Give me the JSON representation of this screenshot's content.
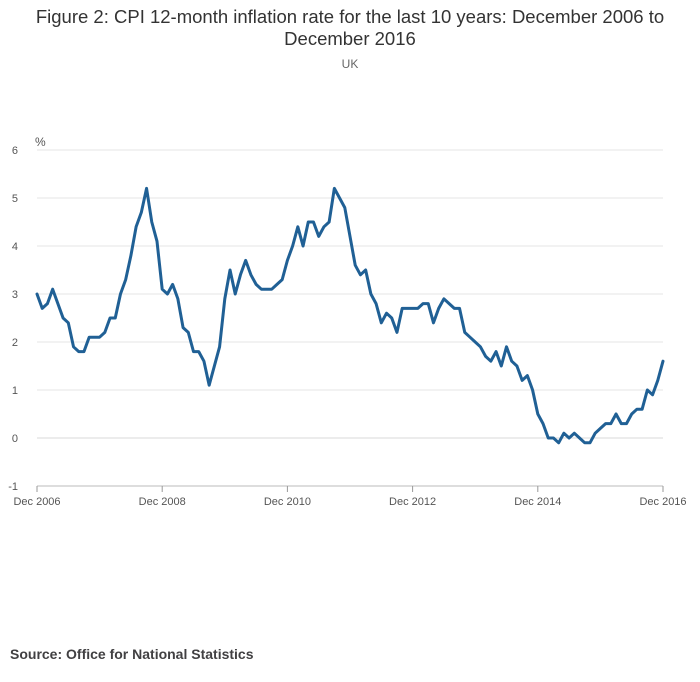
{
  "chart_data": {
    "type": "line",
    "title": "Figure 2: CPI 12-month inflation rate for the last 10 years: December 2006 to December 2016",
    "subtitle": "UK",
    "ylabel": "%",
    "xlabel": "",
    "ylim": [
      -1,
      6
    ],
    "yticks": [
      -1,
      0,
      1,
      2,
      3,
      4,
      5,
      6
    ],
    "xlim": [
      "2006-12",
      "2016-12"
    ],
    "xticks": [
      {
        "value": "2006-12",
        "label": "Dec 2006"
      },
      {
        "value": "2008-12",
        "label": "Dec 2008"
      },
      {
        "value": "2010-12",
        "label": "Dec 2010"
      },
      {
        "value": "2012-12",
        "label": "Dec 2012"
      },
      {
        "value": "2014-12",
        "label": "Dec 2014"
      },
      {
        "value": "2016-12",
        "label": "Dec 2016"
      }
    ],
    "grid": true,
    "line_color": "#206095",
    "series": [
      {
        "x": [
          "2006-12",
          "2007-01",
          "2007-02",
          "2007-03",
          "2007-04",
          "2007-05",
          "2007-06",
          "2007-07",
          "2007-08",
          "2007-09",
          "2007-10",
          "2007-11",
          "2007-12",
          "2008-01",
          "2008-02",
          "2008-03",
          "2008-04",
          "2008-05",
          "2008-06",
          "2008-07",
          "2008-08",
          "2008-09",
          "2008-10",
          "2008-11",
          "2008-12",
          "2009-01",
          "2009-02",
          "2009-03",
          "2009-04",
          "2009-05",
          "2009-06",
          "2009-07",
          "2009-08",
          "2009-09",
          "2009-10",
          "2009-11",
          "2009-12",
          "2010-01",
          "2010-02",
          "2010-03",
          "2010-04",
          "2010-05",
          "2010-06",
          "2010-07",
          "2010-08",
          "2010-09",
          "2010-10",
          "2010-11",
          "2010-12",
          "2011-01",
          "2011-02",
          "2011-03",
          "2011-04",
          "2011-05",
          "2011-06",
          "2011-07",
          "2011-08",
          "2011-09",
          "2011-10",
          "2011-11",
          "2011-12",
          "2012-01",
          "2012-02",
          "2012-03",
          "2012-04",
          "2012-05",
          "2012-06",
          "2012-07",
          "2012-08",
          "2012-09",
          "2012-10",
          "2012-11",
          "2012-12",
          "2013-01",
          "2013-02",
          "2013-03",
          "2013-04",
          "2013-05",
          "2013-06",
          "2013-07",
          "2013-08",
          "2013-09",
          "2013-10",
          "2013-11",
          "2013-12",
          "2014-01",
          "2014-02",
          "2014-03",
          "2014-04",
          "2014-05",
          "2014-06",
          "2014-07",
          "2014-08",
          "2014-09",
          "2014-10",
          "2014-11",
          "2014-12",
          "2015-01",
          "2015-02",
          "2015-03",
          "2015-04",
          "2015-05",
          "2015-06",
          "2015-07",
          "2015-08",
          "2015-09",
          "2015-10",
          "2015-11",
          "2015-12",
          "2016-01",
          "2016-02",
          "2016-03",
          "2016-04",
          "2016-05",
          "2016-06",
          "2016-07",
          "2016-08",
          "2016-09",
          "2016-10",
          "2016-11",
          "2016-12"
        ],
        "values": [
          3.0,
          2.7,
          2.8,
          3.1,
          2.8,
          2.5,
          2.4,
          1.9,
          1.8,
          1.8,
          2.1,
          2.1,
          2.1,
          2.2,
          2.5,
          2.5,
          3.0,
          3.3,
          3.8,
          4.4,
          4.7,
          5.2,
          4.5,
          4.1,
          3.1,
          3.0,
          3.2,
          2.9,
          2.3,
          2.2,
          1.8,
          1.8,
          1.6,
          1.1,
          1.5,
          1.9,
          2.9,
          3.5,
          3.0,
          3.4,
          3.7,
          3.4,
          3.2,
          3.1,
          3.1,
          3.1,
          3.2,
          3.3,
          3.7,
          4.0,
          4.4,
          4.0,
          4.5,
          4.5,
          4.2,
          4.4,
          4.5,
          5.2,
          5.0,
          4.8,
          4.2,
          3.6,
          3.4,
          3.5,
          3.0,
          2.8,
          2.4,
          2.6,
          2.5,
          2.2,
          2.7,
          2.7,
          2.7,
          2.7,
          2.8,
          2.8,
          2.4,
          2.7,
          2.9,
          2.8,
          2.7,
          2.7,
          2.2,
          2.1,
          2.0,
          1.9,
          1.7,
          1.6,
          1.8,
          1.5,
          1.9,
          1.6,
          1.5,
          1.2,
          1.3,
          1.0,
          0.5,
          0.3,
          0.0,
          0.0,
          -0.1,
          0.1,
          0.0,
          0.1,
          0.0,
          -0.1,
          -0.1,
          0.1,
          0.2,
          0.3,
          0.3,
          0.5,
          0.3,
          0.3,
          0.5,
          0.6,
          0.6,
          1.0,
          0.9,
          1.2,
          1.6
        ]
      }
    ]
  },
  "source": "Source: Office for National Statistics"
}
